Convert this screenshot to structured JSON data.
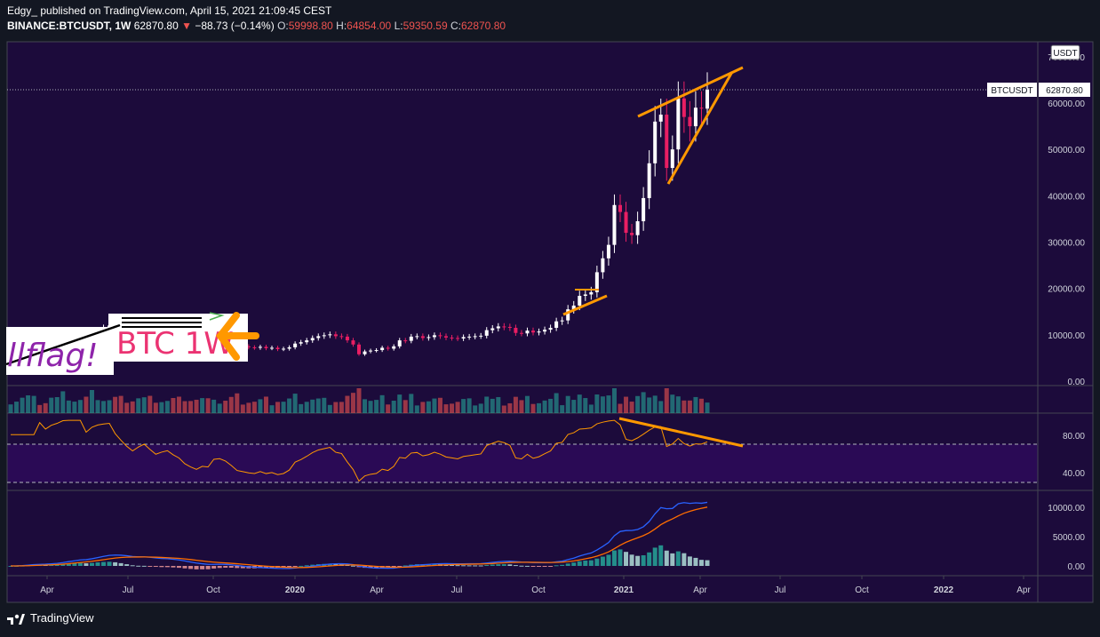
{
  "header": {
    "publisher_line": "Edgy_ published on TradingView.com, April 15, 2021 21:09:45 CEST",
    "symbol": "BINANCE:BTCUSDT, 1W",
    "last": "62870.80",
    "change_arrow": "▼",
    "change": "−88.73 (−0.14%)",
    "o_label": "O:",
    "o": "59998.80",
    "h_label": "H:",
    "h": "64854.00",
    "l_label": "L:",
    "l": "59350.59",
    "c_label": "C:",
    "c": "62870.80"
  },
  "footer": {
    "brand": "TradingView"
  },
  "colors": {
    "background": "#1c0b3b",
    "panel_border": "#434651",
    "up": "#ffffff",
    "down": "#e91e63",
    "trendline": "#ff9800",
    "rsi": "#ff9800",
    "rsi_band": "#2a0a55",
    "macd": "#2962ff",
    "signal": "#ff6d00",
    "hist_pos": "#26a69a",
    "hist_pos_light": "#b2dfdb",
    "volume_up": "#26a69a",
    "volume_down": "#ef5350"
  },
  "chart_data": {
    "type": "candlestick",
    "symbol": "BTCUSDT",
    "interval": "1W",
    "currency_label": "USDT",
    "price_axis_ticks": [
      "70000.00",
      "60000.00",
      "50000.00",
      "40000.00",
      "30000.00",
      "20000.00",
      "10000.00",
      "0.00"
    ],
    "price_axis_values": [
      70000,
      60000,
      50000,
      40000,
      30000,
      20000,
      10000,
      0
    ],
    "price_range": [
      0,
      73000
    ],
    "last_price_label": "62870.80",
    "last_price_value": 62870.8,
    "symbol_tag": "BTCUSDT",
    "time_labels": [
      "Apr",
      "Jul",
      "Oct",
      "2020",
      "Apr",
      "Jul",
      "Oct",
      "2021",
      "Apr",
      "Jul",
      "Oct",
      "2022",
      "Apr"
    ],
    "weekly_closes": [
      3900,
      4100,
      4500,
      5000,
      5300,
      5200,
      5100,
      5600,
      6000,
      7000,
      7800,
      8200,
      8600,
      8000,
      9600,
      10800,
      11500,
      12000,
      11200,
      10600,
      10000,
      9500,
      10300,
      11000,
      10400,
      9800,
      10200,
      10500,
      10000,
      9600,
      8800,
      8300,
      7900,
      8300,
      8200,
      9300,
      9400,
      9100,
      8500,
      7700,
      7500,
      7300,
      7200,
      7400,
      7100,
      7200,
      6900,
      7000,
      7300,
      8100,
      8400,
      8800,
      9300,
      9700,
      9900,
      10100,
      9700,
      9600,
      8800,
      7900,
      5800,
      6400,
      6600,
      6700,
      7200,
      7000,
      7500,
      8800,
      8700,
      9600,
      9700,
      9300,
      9500,
      9900,
      9700,
      9400,
      9300,
      9200,
      9500,
      9600,
      9700,
      9800,
      11000,
      11400,
      11800,
      11700,
      11500,
      10400,
      10300,
      10900,
      10500,
      10700,
      11100,
      11500,
      12900,
      13100,
      15500,
      16300,
      18400,
      18700,
      19200,
      23500,
      26500,
      29400,
      38000,
      36500,
      32000,
      31500,
      34500,
      39500,
      47000,
      56000,
      57500,
      46000,
      50000,
      61000,
      57000,
      55000,
      59000,
      58800,
      62870
    ],
    "volume": {
      "label": "Volume"
    },
    "rsi": {
      "ticks": [
        "80.00",
        "40.00"
      ],
      "tick_values": [
        80,
        40
      ],
      "upper": 70,
      "lower": 30,
      "range": [
        20,
        100
      ]
    },
    "macd": {
      "ticks": [
        "10000.00",
        "5000.00",
        "0.00"
      ],
      "tick_values": [
        10000,
        5000,
        0
      ],
      "range": [
        -1200,
        11800
      ]
    }
  },
  "annotation": {
    "text_purple": "llflag!",
    "text_pink": "BTC 1W"
  }
}
